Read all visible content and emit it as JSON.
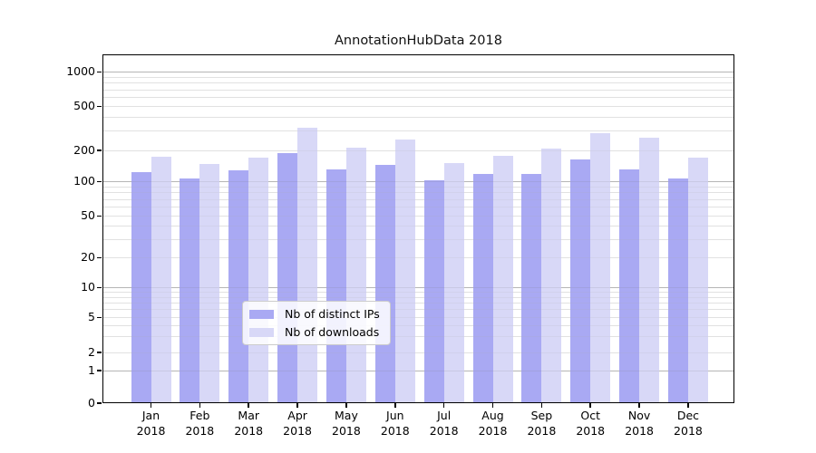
{
  "title": "AnnotationHubData 2018",
  "chart_data": {
    "type": "bar",
    "title": "AnnotationHubData 2018",
    "categories": [
      "Jan",
      "Feb",
      "Mar",
      "Apr",
      "May",
      "Jun",
      "Jul",
      "Aug",
      "Sep",
      "Oct",
      "Nov",
      "Dec"
    ],
    "year_label": "2018",
    "series": [
      {
        "name": "Nb of distinct IPs",
        "color": "#a9a9f3",
        "values": [
          122,
          107,
          127,
          187,
          130,
          143,
          103,
          117,
          117,
          161,
          130,
          106
        ]
      },
      {
        "name": "Nb of downloads",
        "color": "#d8d8f7",
        "values": [
          173,
          146,
          170,
          320,
          210,
          250,
          150,
          176,
          205,
          285,
          260,
          170
        ]
      }
    ],
    "xlabel": "",
    "ylabel": "",
    "yscale": "symlog",
    "yticks": [
      0,
      1,
      2,
      5,
      10,
      20,
      50,
      100,
      200,
      500,
      1000
    ],
    "ylim": [
      0,
      1400
    ],
    "grid": "horizontal log major+minor",
    "legend_position": "inside lower-center"
  },
  "colors": {
    "background": "#ffffff",
    "frame": "#000000",
    "grid_major": "#c0c0c0",
    "grid_minor": "#ebebeb",
    "legend_border": "#cccccc"
  }
}
